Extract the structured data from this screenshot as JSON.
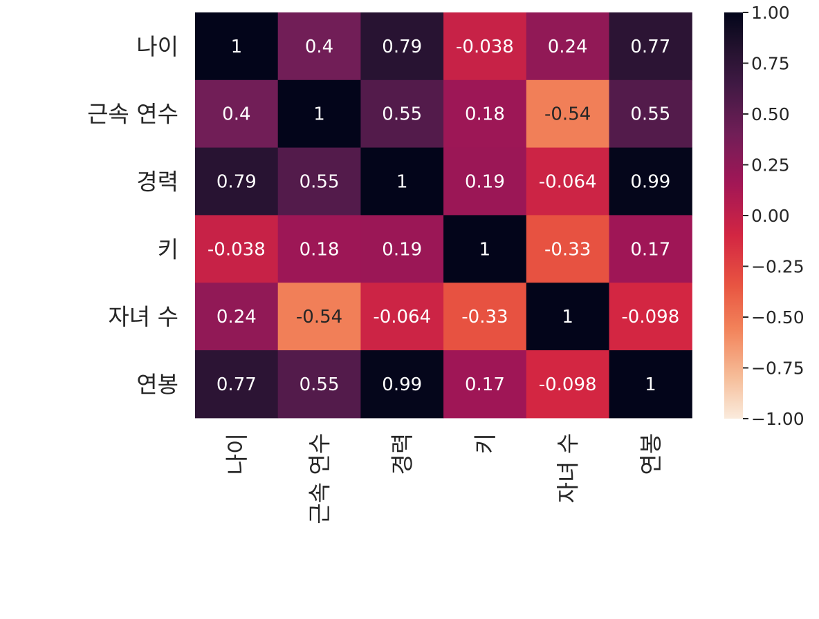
{
  "chart_data": {
    "type": "heatmap",
    "row_labels": [
      "나이",
      "근속 연수",
      "경력",
      "키",
      "자녀 수",
      "연봉"
    ],
    "col_labels": [
      "나이",
      "근속 연수",
      "경력",
      "키",
      "자녀 수",
      "연봉"
    ],
    "values": [
      [
        1,
        0.4,
        0.79,
        -0.038,
        0.24,
        0.77
      ],
      [
        0.4,
        1,
        0.55,
        0.18,
        -0.54,
        0.55
      ],
      [
        0.79,
        0.55,
        1,
        0.19,
        -0.064,
        0.99
      ],
      [
        -0.038,
        0.18,
        0.19,
        1,
        -0.33,
        0.17
      ],
      [
        0.24,
        -0.54,
        -0.064,
        -0.33,
        1,
        -0.098
      ],
      [
        0.77,
        0.55,
        0.99,
        0.17,
        -0.098,
        1
      ]
    ],
    "annotations": [
      [
        "1",
        "0.4",
        "0.79",
        "-0.038",
        "0.24",
        "0.77"
      ],
      [
        "0.4",
        "1",
        "0.55",
        "0.18",
        "-0.54",
        "0.55"
      ],
      [
        "0.79",
        "0.55",
        "1",
        "0.19",
        "-0.064",
        "0.99"
      ],
      [
        "-0.038",
        "0.18",
        "0.19",
        "1",
        "-0.33",
        "0.17"
      ],
      [
        "0.24",
        "-0.54",
        "-0.064",
        "-0.33",
        "1",
        "-0.098"
      ],
      [
        "0.77",
        "0.55",
        "0.99",
        "0.17",
        "-0.098",
        "1"
      ]
    ],
    "colorbar": {
      "vmin": -1.0,
      "vmax": 1.0,
      "ticks": [
        1.0,
        0.75,
        0.5,
        0.25,
        0.0,
        -0.25,
        -0.5,
        -0.75,
        -1.0
      ],
      "tick_labels": [
        "1.00",
        "0.75",
        "0.50",
        "0.25",
        "0.00",
        "−0.25",
        "−0.50",
        "−0.75",
        "−1.00"
      ]
    },
    "colormap": "rocket_r",
    "xlabel": "",
    "ylabel": "",
    "title": ""
  }
}
